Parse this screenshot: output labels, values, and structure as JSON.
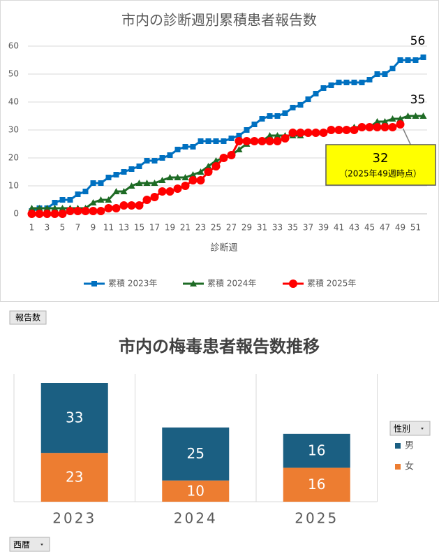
{
  "chart_data": [
    {
      "type": "line",
      "title": "市内の診断週別累積患者報告数",
      "x_label": "診断週",
      "categories": [
        "1",
        null,
        "3",
        null,
        "5",
        null,
        "7",
        null,
        "9",
        null,
        "11",
        null,
        "13",
        null,
        "15",
        null,
        "17",
        null,
        "19",
        null,
        "21",
        null,
        "23",
        null,
        "25",
        null,
        "27",
        null,
        "29",
        null,
        "31",
        null,
        "33",
        null,
        "35",
        null,
        "37",
        null,
        "39",
        null,
        "41",
        null,
        "43",
        null,
        "45",
        null,
        "47",
        null,
        "49",
        null,
        "51",
        null
      ],
      "series": [
        {
          "name": "累積 2023年",
          "color": "#0070c0",
          "marker": "square",
          "values": [
            1,
            2,
            2,
            4,
            5,
            5,
            7,
            8,
            11,
            11,
            13,
            14,
            15,
            16,
            17,
            19,
            19,
            20,
            21,
            23,
            24,
            24,
            26,
            26,
            26,
            26,
            27,
            28,
            30,
            32,
            34,
            35,
            35,
            36,
            38,
            39,
            41,
            43,
            45,
            46,
            47,
            47,
            47,
            47,
            48,
            50,
            50,
            52,
            55,
            55,
            55,
            56
          ]
        },
        {
          "name": "累積 2024年",
          "color": "#1e6b25",
          "marker": "triangle",
          "values": [
            2,
            2,
            2,
            2,
            2,
            2,
            2,
            2,
            4,
            5,
            5,
            8,
            8,
            10,
            11,
            11,
            11,
            12,
            13,
            13,
            13,
            14,
            15,
            17,
            19,
            20,
            21,
            23,
            25,
            26,
            26,
            28,
            28,
            28,
            28,
            28,
            29,
            29,
            29,
            30,
            30,
            30,
            31,
            31,
            31,
            33,
            33,
            34,
            34,
            35,
            35,
            35
          ]
        },
        {
          "name": "累積 2025年",
          "color": "#ff0000",
          "marker": "circle",
          "values": [
            0,
            0,
            0,
            0,
            0,
            1,
            1,
            1,
            1,
            1,
            2,
            2,
            3,
            3,
            3,
            5,
            6,
            8,
            8,
            9,
            10,
            12,
            12,
            15,
            17,
            20,
            21,
            26,
            26,
            26,
            26,
            26,
            26,
            27,
            29,
            29,
            29,
            29,
            29,
            30,
            30,
            30,
            30,
            31,
            31,
            31,
            31,
            31,
            32,
            null,
            null,
            null
          ]
        }
      ],
      "ylim": [
        0,
        60
      ],
      "yticks": [
        0,
        10,
        20,
        30,
        40,
        50,
        60
      ],
      "grid": true,
      "legend": "bottom",
      "data_labels": "last",
      "callout_note": "（2025年49週時点）"
    },
    {
      "type": "stacked-bar",
      "title": "市内の梅毒患者報告数推移",
      "value_field": "報告数",
      "axis_field": "西暦",
      "legend_title": "性別",
      "legend": "right",
      "categories": [
        "2023",
        "2024",
        "2025"
      ],
      "series": [
        {
          "name": "女",
          "color": "#ed7d31",
          "values": [
            23,
            10,
            16
          ]
        },
        {
          "name": "男",
          "color": "#1b5f82",
          "values": [
            33,
            25,
            16
          ]
        }
      ]
    }
  ]
}
